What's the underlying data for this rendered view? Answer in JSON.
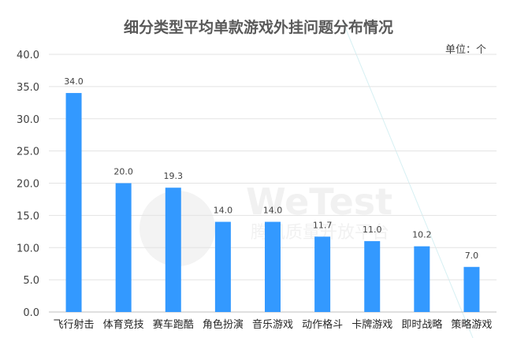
{
  "chart_data": {
    "type": "bar",
    "title": "细分类型平均单款游戏外挂问题分布情况",
    "unit_label": "单位：个",
    "categories": [
      "飞行射击",
      "体育竞技",
      "赛车跑酷",
      "角色扮演",
      "音乐游戏",
      "动作格斗",
      "卡牌游戏",
      "即时战略",
      "策略游戏"
    ],
    "values": [
      34.0,
      20.0,
      19.3,
      14.0,
      14.0,
      11.7,
      11.0,
      10.2,
      7.0
    ],
    "value_labels": [
      "34.0",
      "20.0",
      "19.3",
      "14.0",
      "14.0",
      "11.7",
      "11.0",
      "10.2",
      "7.0"
    ],
    "yticks": [
      "0.0",
      "5.0",
      "10.0",
      "15.0",
      "20.0",
      "25.0",
      "30.0",
      "35.0",
      "40.0"
    ],
    "ylim": [
      0,
      40
    ],
    "grid": true,
    "legend": "none",
    "bar_color": "#3399ff"
  },
  "watermark": {
    "brand": "WeTest",
    "tagline": "腾讯质量开放平台"
  }
}
